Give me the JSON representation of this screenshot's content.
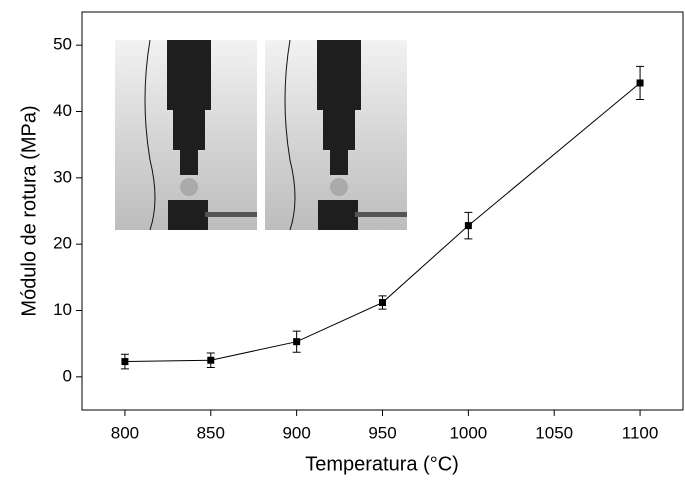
{
  "chart_data": {
    "type": "line",
    "x_label": "Temperatura (°C)",
    "y_label": "Módulo de rotura (MPa)",
    "x": [
      800,
      850,
      900,
      950,
      1000,
      1100
    ],
    "series": [
      {
        "color": "#000000",
        "values": [
          2.3,
          2.5,
          5.3,
          11.2,
          22.8,
          44.3
        ],
        "errors": [
          1.1,
          1.1,
          1.6,
          1.0,
          2.0,
          2.5
        ]
      }
    ],
    "xlim": [
      775,
      1125
    ],
    "ylim": [
      -5,
      55
    ],
    "xticks": [
      800,
      850,
      900,
      950,
      1000,
      1050,
      1100
    ],
    "yticks": [
      0,
      10,
      20,
      30,
      40,
      50
    ]
  }
}
